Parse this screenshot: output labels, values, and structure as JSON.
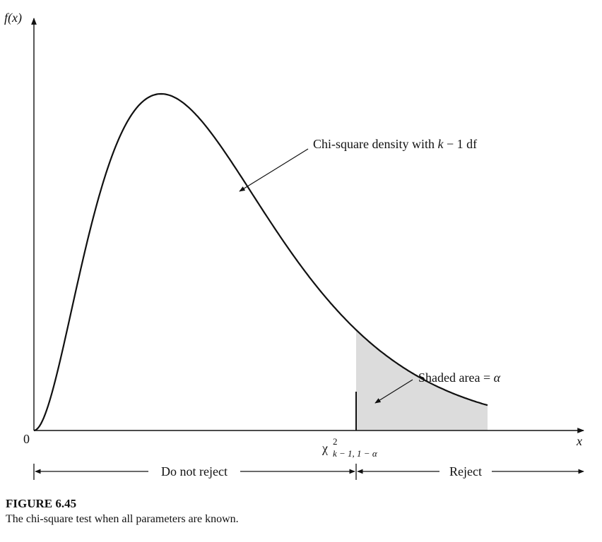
{
  "figure": {
    "y_axis_label": "f(x)",
    "x_axis_label": "x",
    "origin_label": "0",
    "critical_value_label": {
      "symbol": "χ",
      "superscript": "2",
      "subscript": "k − 1, 1 − α"
    },
    "curve_annotation": {
      "prefix": "Chi-square density with ",
      "variable": "k",
      "suffix": " − 1 df"
    },
    "shaded_annotation": {
      "prefix": "Shaded area = ",
      "symbol": "α"
    },
    "region_left_label": "Do not reject",
    "region_right_label": "Reject",
    "colors": {
      "curve": "#111111",
      "shaded_area": "#dcdcdc",
      "axis": "#111111"
    }
  },
  "caption": {
    "title": "FIGURE 6.45",
    "text": "The chi-square test when all parameters are known."
  }
}
